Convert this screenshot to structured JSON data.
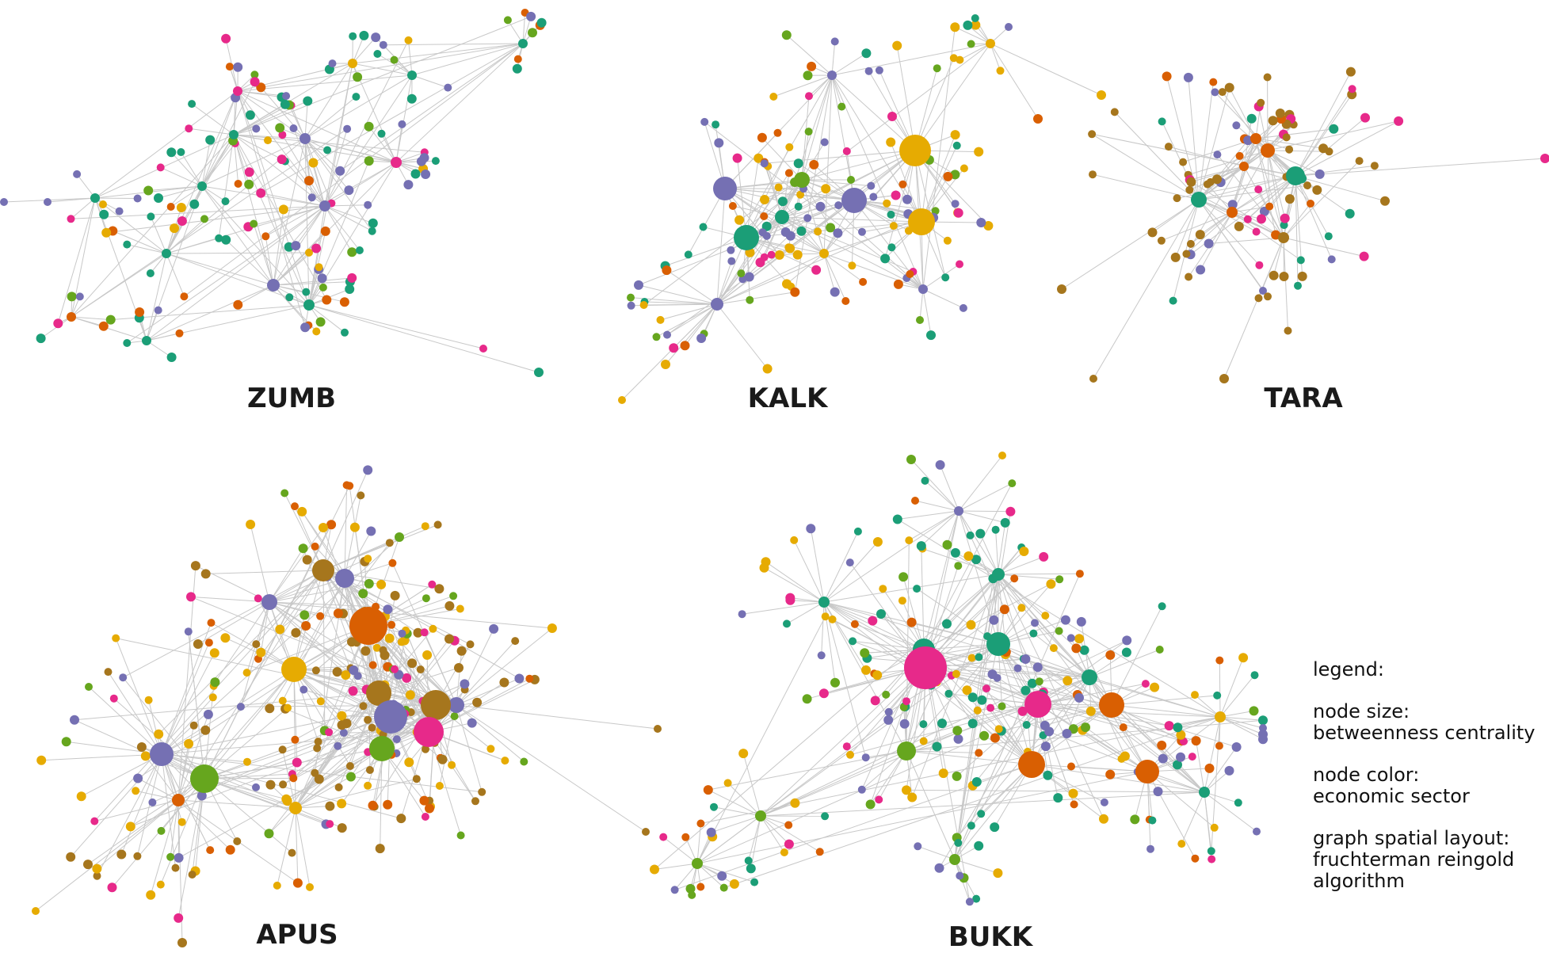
{
  "colors": {
    "edge": "#c8c8c8",
    "green_teal": "#1b9e77",
    "orange": "#d95f02",
    "purple": "#7570b3",
    "pink": "#e7298a",
    "lime": "#66a61e",
    "gold": "#e6ab02",
    "brown": "#a6761d"
  },
  "networks": [
    {
      "name": "ZUMB",
      "palette": [
        "green_teal",
        "green_teal",
        "green_teal",
        "purple",
        "purple",
        "pink",
        "orange",
        "gold",
        "lime"
      ]
    },
    {
      "name": "KALK",
      "palette": [
        "purple",
        "lime",
        "gold",
        "green_teal",
        "pink",
        "orange",
        "purple",
        "gold"
      ]
    },
    {
      "name": "TARA",
      "palette": [
        "brown",
        "brown",
        "brown",
        "orange",
        "green_teal",
        "purple",
        "pink"
      ]
    },
    {
      "name": "APUS",
      "palette": [
        "brown",
        "brown",
        "brown",
        "gold",
        "gold",
        "pink",
        "purple",
        "orange",
        "lime"
      ]
    },
    {
      "name": "BUKK",
      "palette": [
        "gold",
        "gold",
        "green_teal",
        "green_teal",
        "purple",
        "pink",
        "orange",
        "lime"
      ]
    }
  ],
  "legend": {
    "title": "legend:",
    "size_heading": "node size:",
    "size_value": "betweenness centrality",
    "color_heading": "node color:",
    "color_value": "economic sector",
    "layout_heading": "graph spatial layout:",
    "layout_line1": "fruchterman reingold",
    "layout_line2": "algorithm"
  }
}
